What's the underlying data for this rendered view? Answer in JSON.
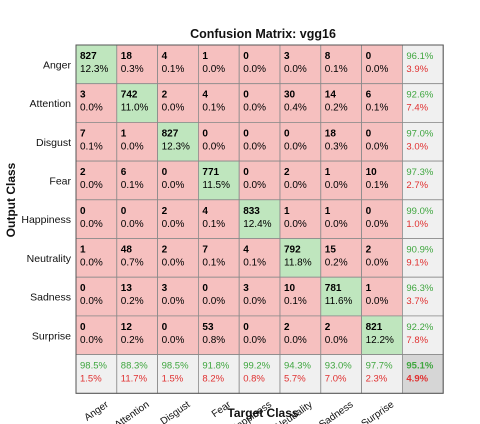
{
  "chart_data": {
    "type": "heatmap",
    "title": "Confusion Matrix: vgg16",
    "xlabel": "Target Class",
    "ylabel": "Output Class",
    "classes": [
      "Anger",
      "Attention",
      "Disgust",
      "Fear",
      "Happiness",
      "Neutrality",
      "Sadness",
      "Surprise"
    ],
    "counts": [
      [
        827,
        18,
        4,
        1,
        0,
        3,
        8,
        0
      ],
      [
        3,
        742,
        2,
        4,
        0,
        30,
        14,
        6
      ],
      [
        7,
        1,
        827,
        0,
        0,
        0,
        18,
        0
      ],
      [
        2,
        6,
        0,
        771,
        0,
        2,
        1,
        10
      ],
      [
        0,
        0,
        2,
        4,
        833,
        1,
        1,
        0
      ],
      [
        1,
        48,
        2,
        7,
        4,
        792,
        15,
        2
      ],
      [
        0,
        13,
        3,
        0,
        3,
        10,
        781,
        1
      ],
      [
        0,
        12,
        0,
        53,
        0,
        2,
        2,
        821
      ]
    ],
    "percents": [
      [
        "12.3%",
        "0.3%",
        "0.1%",
        "0.0%",
        "0.0%",
        "0.0%",
        "0.1%",
        "0.0%"
      ],
      [
        "0.0%",
        "11.0%",
        "0.0%",
        "0.1%",
        "0.0%",
        "0.4%",
        "0.2%",
        "0.1%"
      ],
      [
        "0.1%",
        "0.0%",
        "12.3%",
        "0.0%",
        "0.0%",
        "0.0%",
        "0.3%",
        "0.0%"
      ],
      [
        "0.0%",
        "0.1%",
        "0.0%",
        "11.5%",
        "0.0%",
        "0.0%",
        "0.0%",
        "0.1%"
      ],
      [
        "0.0%",
        "0.0%",
        "0.0%",
        "0.1%",
        "12.4%",
        "0.0%",
        "0.0%",
        "0.0%"
      ],
      [
        "0.0%",
        "0.7%",
        "0.0%",
        "0.1%",
        "0.1%",
        "11.8%",
        "0.2%",
        "0.0%"
      ],
      [
        "0.0%",
        "0.2%",
        "0.0%",
        "0.0%",
        "0.0%",
        "0.1%",
        "11.6%",
        "0.0%"
      ],
      [
        "0.0%",
        "0.2%",
        "0.0%",
        "0.8%",
        "0.0%",
        "0.0%",
        "0.0%",
        "12.2%"
      ]
    ],
    "row_summary": [
      [
        "96.1%",
        "3.9%"
      ],
      [
        "92.6%",
        "7.4%"
      ],
      [
        "97.0%",
        "3.0%"
      ],
      [
        "97.3%",
        "2.7%"
      ],
      [
        "99.0%",
        "1.0%"
      ],
      [
        "90.9%",
        "9.1%"
      ],
      [
        "96.3%",
        "3.7%"
      ],
      [
        "92.2%",
        "7.8%"
      ]
    ],
    "col_summary": [
      [
        "98.5%",
        "1.5%"
      ],
      [
        "88.3%",
        "11.7%"
      ],
      [
        "98.5%",
        "1.5%"
      ],
      [
        "91.8%",
        "8.2%"
      ],
      [
        "99.2%",
        "0.8%"
      ],
      [
        "94.3%",
        "5.7%"
      ],
      [
        "93.0%",
        "7.0%"
      ],
      [
        "97.7%",
        "2.3%"
      ]
    ],
    "overall": [
      "95.1%",
      "4.9%"
    ],
    "colors": {
      "diagonal": "#bfe6be",
      "off_diagonal": "#f6c0bf",
      "summary": "#f0f0f0",
      "overall": "#d6d6d6",
      "correct_text": "#3fa63f",
      "error_text": "#e03030"
    }
  }
}
